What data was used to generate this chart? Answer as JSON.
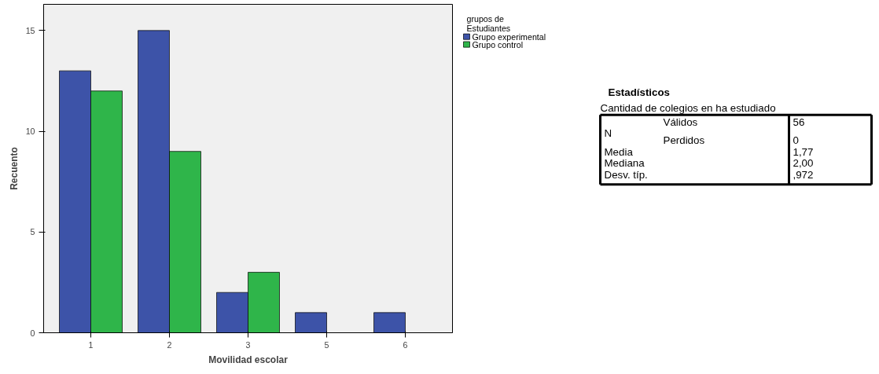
{
  "chart_data": [
    {
      "type": "bar",
      "xlabel": "Movilidad escolar",
      "ylabel": "Recuento",
      "legend_title": "grupos de\nEstudiantes",
      "categories": [
        "1",
        "2",
        "3",
        "5",
        "6"
      ],
      "series": [
        {
          "name": "Grupo experimental",
          "color": "#3d53a8",
          "values": [
            13,
            15,
            2,
            1,
            1
          ]
        },
        {
          "name": "Grupo control",
          "color": "#2fb54a",
          "values": [
            12,
            9,
            3,
            null,
            null
          ]
        }
      ],
      "ylim": [
        0,
        16.3
      ],
      "yticks": [
        0,
        5,
        10,
        15
      ],
      "grid": false,
      "legend": "top right"
    },
    {
      "type": "other",
      "title": "Estadísticos",
      "subtitle": "Cantidad de colegios en ha estudiado",
      "annotations": [
        "N",
        "Válidos",
        "56",
        "Perdidos",
        "0",
        "Media",
        "1,77",
        "Mediana",
        "2,00",
        "Desv. típ.",
        ",972"
      ]
    }
  ]
}
